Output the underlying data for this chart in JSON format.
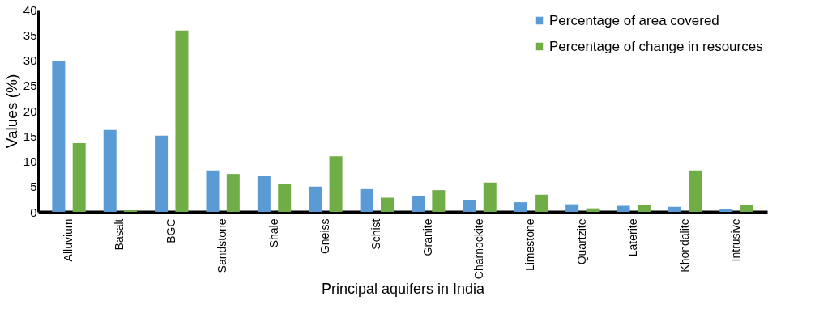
{
  "chart_data": {
    "type": "bar",
    "xlabel": "Principal aquifers in India",
    "ylabel": "Values (%)",
    "categories": [
      "Alluvium",
      "Basalt",
      "BGC",
      "Sandstone",
      "Shale",
      "Gneiss",
      "Schist",
      "Granite",
      "Charnockite",
      "Limestone",
      "Quartzite",
      "Laterite",
      "Khondalite",
      "Intrusive"
    ],
    "series": [
      {
        "name": "Percentage of area covered",
        "color": "#5b9bd5",
        "values": [
          29.8,
          16.2,
          15.1,
          8.2,
          7.1,
          5.0,
          4.5,
          3.2,
          2.4,
          1.9,
          1.5,
          1.2,
          1.0,
          0.5
        ]
      },
      {
        "name": "Percentage of change in resources",
        "color": "#70ad47",
        "values": [
          13.6,
          0.3,
          35.9,
          7.5,
          5.6,
          11.0,
          2.8,
          4.3,
          5.8,
          3.4,
          0.7,
          1.3,
          8.2,
          1.4
        ]
      }
    ],
    "ylim": [
      0,
      40
    ],
    "yticks": [
      0,
      5,
      10,
      15,
      20,
      25,
      30,
      35,
      40
    ],
    "grid": false,
    "legend": "top right"
  }
}
